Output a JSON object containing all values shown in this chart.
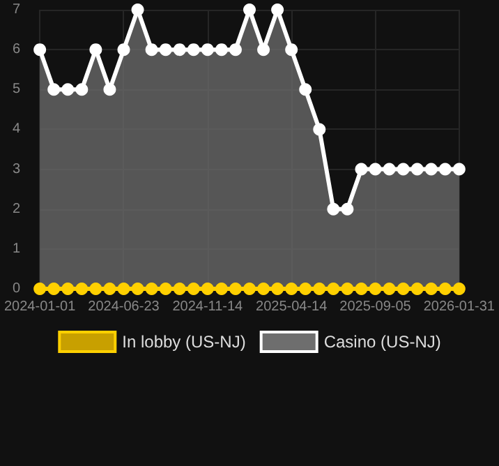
{
  "chart_data": {
    "type": "area",
    "categories": [
      "2024-01-01",
      null,
      null,
      null,
      null,
      null,
      "2024-06-23",
      null,
      null,
      null,
      null,
      null,
      "2024-11-14",
      null,
      null,
      null,
      null,
      null,
      "2025-04-14",
      null,
      null,
      null,
      null,
      null,
      "2025-09-05",
      null,
      null,
      null,
      null,
      null,
      "2026-01-31"
    ],
    "series": [
      {
        "name": "In lobby (US-NJ)",
        "type": "line",
        "color": "#ffd000",
        "values": [
          0,
          0,
          0,
          0,
          0,
          0,
          0,
          0,
          0,
          0,
          0,
          0,
          0,
          0,
          0,
          0,
          0,
          0,
          0,
          0,
          0,
          0,
          0,
          0,
          0,
          0,
          0,
          0,
          0,
          0,
          0
        ]
      },
      {
        "name": "Casino (US-NJ)",
        "color": "#ffffff",
        "values": [
          6,
          5,
          5,
          5,
          6,
          5,
          6,
          7,
          6,
          6,
          6,
          6,
          6,
          6,
          6,
          7,
          6,
          7,
          6,
          5,
          4,
          2,
          2,
          3,
          3,
          3,
          3,
          3,
          3,
          3,
          3
        ]
      }
    ],
    "ylim": [
      0,
      7
    ],
    "yticks": [
      0,
      1,
      2,
      3,
      4,
      5,
      6,
      7
    ],
    "grid": true,
    "legend": "bottom",
    "marker": "circle",
    "line_style": "solid"
  }
}
